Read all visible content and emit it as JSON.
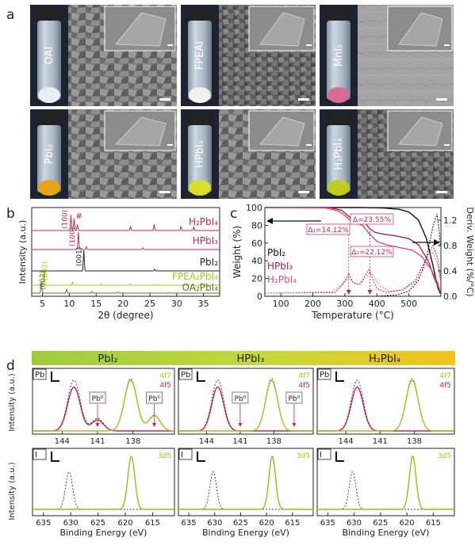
{
  "panel_labels": {
    "a": "a",
    "b": "b",
    "c": "c",
    "d": "d"
  },
  "panel_a": {
    "tiles": [
      {
        "label": "OAI",
        "powder": "#e8eef2"
      },
      {
        "label": "FPEAI",
        "powder": "#f2f2ea"
      },
      {
        "label": "MnI2",
        "powder": "#d96a92"
      },
      {
        "label": "PbI2",
        "powder": "#e8a418"
      },
      {
        "label": "HPbI3",
        "powder": "#d6e02a"
      },
      {
        "label": "H2PbI4",
        "powder": "#c2cc1c"
      }
    ]
  },
  "chart_data": [
    {
      "type": "line",
      "panel": "b",
      "xlabel": "2θ (degree)",
      "ylabel": "Intensity (a.u.)",
      "xlim": [
        3,
        38
      ],
      "xticks": [
        5,
        10,
        15,
        20,
        25,
        30,
        35
      ],
      "series": [
        {
          "name": "H2PbI4",
          "color": "#c0284a",
          "offset": 5,
          "peaks": [
            [
              10.3,
              0.9
            ],
            [
              10.9,
              0.7
            ],
            [
              11.5,
              0.35
            ],
            [
              21.4,
              0.25
            ],
            [
              25.8,
              0.35
            ],
            [
              30.8,
              0.25
            ],
            [
              33.2,
              0.2
            ]
          ]
        },
        {
          "name": "HPbI3",
          "color": "#c0284a",
          "offset": 4,
          "peaks": [
            [
              11.7,
              1.0
            ],
            [
              13.2,
              0.15
            ],
            [
              23.7,
              0.1
            ]
          ]
        },
        {
          "name": "PbI2",
          "color": "#222222",
          "offset": 3,
          "peaks": [
            [
              12.7,
              1.0
            ],
            [
              25.9,
              0.08
            ],
            [
              38.7,
              0.05
            ]
          ]
        },
        {
          "name": "FPEA2PbI4",
          "color": "#a8c21a",
          "offset": 2,
          "peaks": [
            [
              5.3,
              1.0
            ],
            [
              10.6,
              0.2
            ],
            [
              16.0,
              0.1
            ],
            [
              21.3,
              0.1
            ],
            [
              26.7,
              0.05
            ]
          ]
        },
        {
          "name": "OA2PbI4",
          "color": "#5a7a14",
          "offset": 1,
          "peaks": [
            [
              4.8,
              1.0
            ],
            [
              9.5,
              0.35
            ],
            [
              14.2,
              0.15
            ],
            [
              19.0,
              0.1
            ],
            [
              28.5,
              0.05
            ]
          ]
        }
      ],
      "labels": {
        "series": [
          "H₂PbI₄",
          "HPbI₃",
          "PbI₂",
          "FPEA₂PbI₄",
          "OA₂PbI₄"
        ],
        "peaks": [
          "(100)",
          "#",
          "(100)",
          "(001)",
          "(002)",
          "(002)"
        ]
      }
    },
    {
      "type": "line",
      "panel": "c",
      "xlabel": "Temperature (°C)",
      "ylabel": "Weight (%)",
      "y2label": "Deriv. Weight (%/°C)",
      "xlim": [
        50,
        600
      ],
      "ylim": [
        0,
        100
      ],
      "y2lim": [
        0,
        1.4
      ],
      "xticks": [
        100,
        200,
        300,
        400,
        500
      ],
      "yticks": [
        0,
        20,
        40,
        60,
        80,
        100
      ],
      "y2ticks": [
        0.0,
        0.4,
        0.8,
        1.2
      ],
      "y2ticklabels": [
        "0.0",
        "0.4",
        "0.8",
        "1.2"
      ],
      "legend": [
        "PbI₂",
        "HPbI₃",
        "H₂PbI₄"
      ],
      "annotations": [
        "Δ₁=14.12%",
        "Δ=23.55%",
        "Δ₂=22.12%"
      ],
      "markers": [
        312,
        378
      ],
      "series": [
        {
          "name": "PbI2 weight",
          "color": "#111111",
          "x": [
            50,
            350,
            420,
            470,
            500,
            530,
            555,
            575,
            590,
            598
          ],
          "y": [
            100,
            100,
            99.5,
            98,
            95,
            86,
            65,
            35,
            10,
            3
          ]
        },
        {
          "name": "HPbI3 weight",
          "color": "#b02040",
          "x": [
            50,
            250,
            290,
            312,
            330,
            350,
            365,
            378,
            395,
            420,
            460,
            500,
            530,
            560,
            580,
            598
          ],
          "y": [
            100,
            100,
            97,
            90,
            85,
            84,
            82,
            76,
            72,
            70,
            68,
            65,
            58,
            40,
            20,
            5
          ]
        },
        {
          "name": "H2PbI4 weight",
          "color": "#d45070",
          "x": [
            50,
            240,
            280,
            300,
            315,
            330,
            355,
            378,
            400,
            430,
            470,
            510,
            540,
            570,
            590,
            598
          ],
          "y": [
            100,
            99.5,
            96,
            91,
            86,
            83,
            80,
            70,
            62,
            58,
            55,
            52,
            45,
            30,
            15,
            5
          ]
        },
        {
          "name": "PbI2 deriv",
          "color": "#111111",
          "x": [
            50,
            400,
            460,
            500,
            530,
            555,
            575,
            588,
            595,
            598
          ],
          "y2": [
            0,
            0,
            0.02,
            0.08,
            0.25,
            0.6,
            1.1,
            1.3,
            1.0,
            0.8
          ]
        },
        {
          "name": "HPbI3 deriv",
          "color": "#b02040",
          "x": [
            50,
            270,
            295,
            312,
            325,
            345,
            360,
            375,
            385,
            400,
            430,
            480,
            520,
            555,
            575,
            590,
            598
          ],
          "y2": [
            0.05,
            0.06,
            0.2,
            0.36,
            0.22,
            0.18,
            0.3,
            0.42,
            0.3,
            0.12,
            0.06,
            0.1,
            0.25,
            0.6,
            0.8,
            0.6,
            0.3
          ]
        },
        {
          "name": "H2PbI4 deriv",
          "color": "#e07090",
          "x": [
            50,
            260,
            290,
            312,
            330,
            350,
            365,
            378,
            390,
            410,
            440,
            480,
            520,
            555,
            575,
            590,
            598
          ],
          "y2": [
            0.05,
            0.07,
            0.18,
            0.3,
            0.2,
            0.2,
            0.3,
            0.38,
            0.32,
            0.16,
            0.08,
            0.1,
            0.22,
            0.5,
            0.7,
            0.5,
            0.25
          ]
        }
      ]
    }
  ],
  "panel_d": {
    "headers": [
      "PbI₂",
      "HPbI₃",
      "H₂PbI₄"
    ],
    "ylabel": "Intensity (a.u.)",
    "xlabel": "Binding Energy (eV)",
    "pb": {
      "element": "Pb",
      "legend_top": "4f7",
      "legend_bottom": "4f5",
      "xlim": [
        146.5,
        134.5
      ],
      "xticks": [
        144,
        141,
        138
      ],
      "pb0_label": "Pb⁰",
      "peaks": {
        "4f5": 143.0,
        "4f7": 138.2
      },
      "pb0_positions": [
        141.0,
        136.2
      ]
    },
    "i": {
      "element": "I",
      "legend": "3d5",
      "xlim": [
        637,
        611
      ],
      "xticks": [
        635,
        630,
        625,
        620,
        615
      ],
      "peaks": {
        "3d3": 630.3,
        "3d5": 618.9
      }
    }
  }
}
